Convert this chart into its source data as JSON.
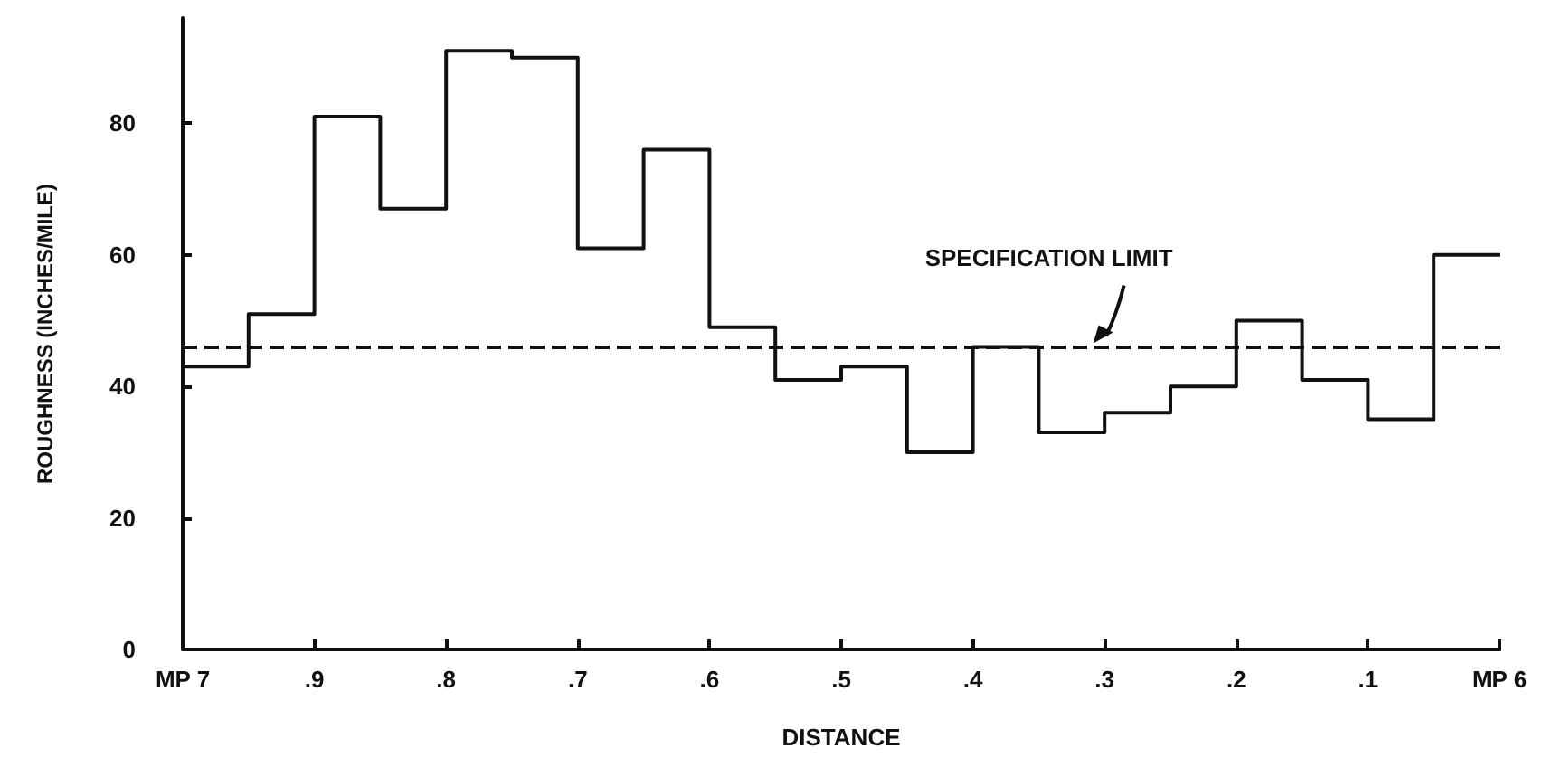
{
  "chart_data": {
    "type": "step",
    "xlabel": "DISTANCE",
    "ylabel": "ROUGHNESS (INCHES/MILE)",
    "x": [
      1,
      0.95,
      0.9,
      0.85,
      0.8,
      0.75,
      0.7,
      0.65,
      0.6,
      0.55,
      0.5,
      0.45,
      0.4,
      0.35,
      0.3,
      0.25,
      0.2,
      0.15,
      0.1,
      0.05,
      0
    ],
    "values": [
      43,
      51,
      81,
      67,
      91,
      90,
      61,
      76,
      49,
      41,
      43,
      30,
      46,
      33,
      36,
      40,
      50,
      41,
      35,
      60,
      60
    ],
    "color": "#111111",
    "line_style": "solid",
    "marker": "none",
    "grid": false,
    "xlim": [
      1,
      0
    ],
    "xticks": [
      {
        "value": 1,
        "label": "MP 7"
      },
      {
        "value": 0.9,
        "label": ".9"
      },
      {
        "value": 0.8,
        "label": ".8"
      },
      {
        "value": 0.7,
        "label": ".7"
      },
      {
        "value": 0.6,
        "label": ".6"
      },
      {
        "value": 0.5,
        "label": ".5"
      },
      {
        "value": 0.4,
        "label": ".4"
      },
      {
        "value": 0.3,
        "label": ".3"
      },
      {
        "value": 0.2,
        "label": ".2"
      },
      {
        "value": 0.1,
        "label": ".1"
      },
      {
        "value": 0,
        "label": "MP 6"
      }
    ],
    "ylim": [
      0,
      96
    ],
    "yticks": [
      0,
      20,
      40,
      60,
      80
    ],
    "ref_lines": [
      {
        "axis": "y",
        "value": 46,
        "label": "SPECIFICATION LIMIT",
        "line_style": "dashed",
        "color": "#111111"
      }
    ]
  }
}
